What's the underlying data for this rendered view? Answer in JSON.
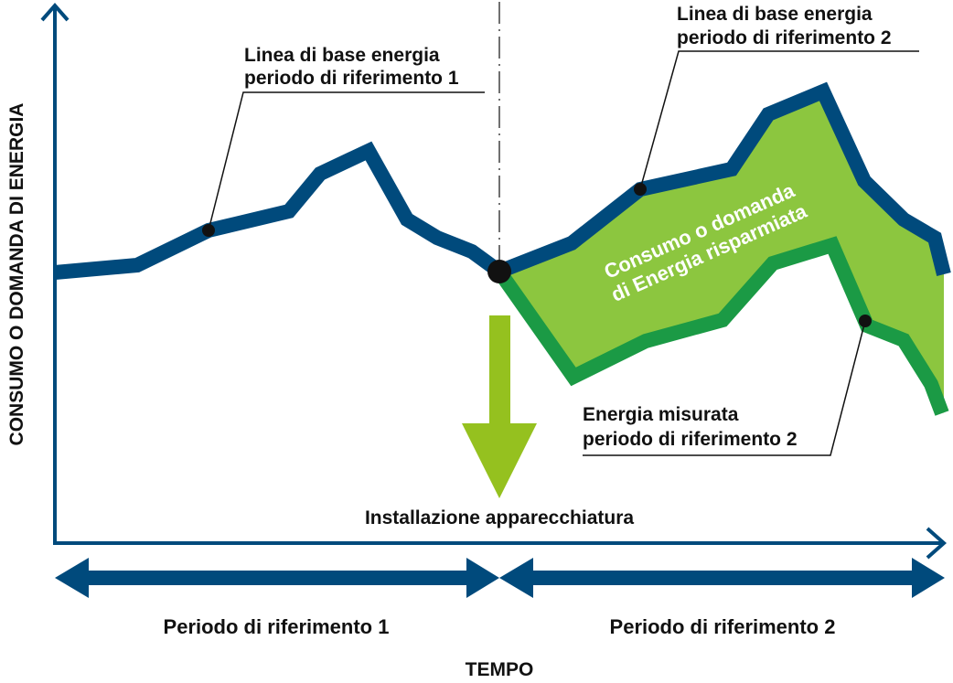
{
  "colors": {
    "baseline": "#004a7c",
    "measured": "#1b9a45",
    "savings_fill": "#8cc63f",
    "install_arrow": "#95c11f",
    "savings_text": "#ffffff",
    "text": "#111111"
  },
  "axes": {
    "y_label": "CONSUMO O DOMANDA DI ENERGIA",
    "x_label": "TEMPO"
  },
  "labels": {
    "baseline_1_line1": "Linea di base energia",
    "baseline_1_line2": "periodo di riferimento 1",
    "baseline_2_line1": "Linea di base energia",
    "baseline_2_line2": "periodo di riferimento 2",
    "savings_line1": "Consumo o domanda",
    "savings_line2": "di Energia risparmiata",
    "measured_line1": "Energia misurata",
    "measured_line2": "periodo di riferimento 2",
    "installation": "Installazione apparecchiatura"
  },
  "periods": {
    "period_1": "Periodo di riferimento 1",
    "period_2": "Periodo di riferimento 2"
  }
}
